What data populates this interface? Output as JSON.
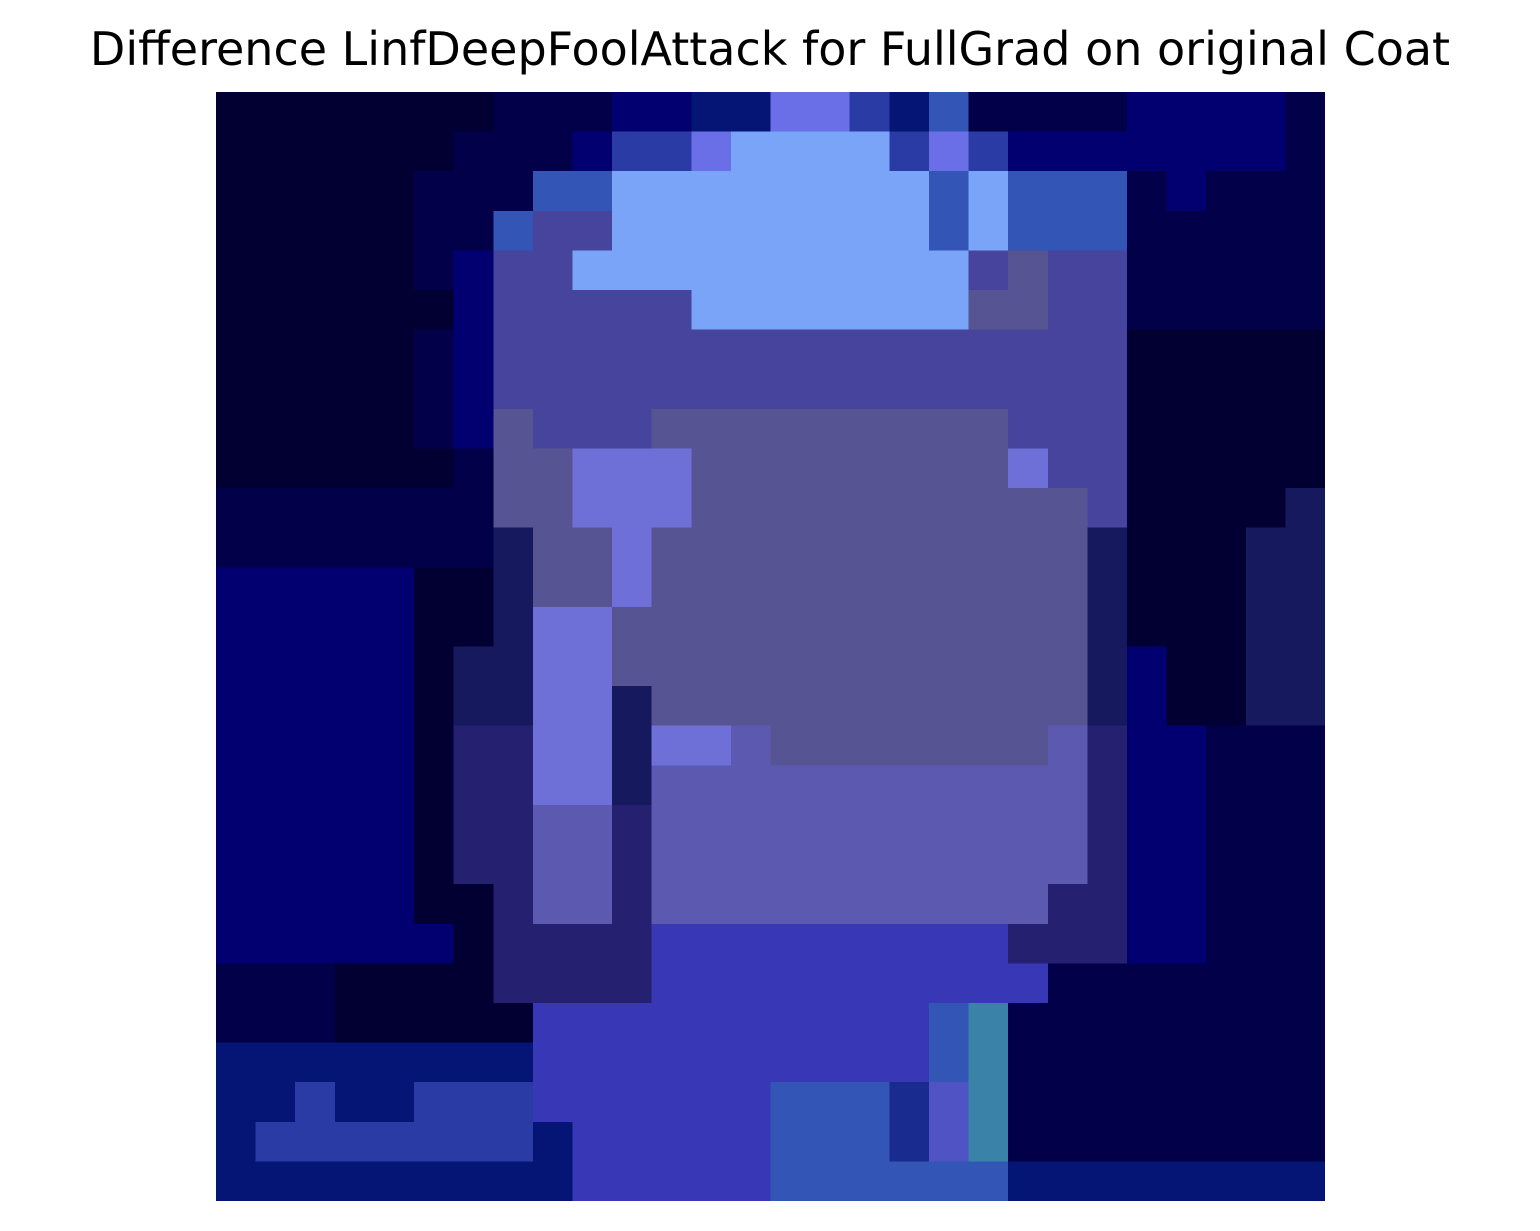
{
  "figure": {
    "title": "Difference LinfDeepFoolAttack for FullGrad on original Coat"
  },
  "chart_data": {
    "type": "heatmap",
    "title": "Difference LinfDeepFoolAttack for FullGrad on original Coat",
    "xlabel": "",
    "ylabel": "",
    "axes_visible": false,
    "grid": false,
    "legend": "none",
    "rows": 28,
    "cols": 28,
    "colormap": "rgb",
    "palette": [
      "#020033",
      "#020048",
      "#020071",
      "#041575",
      "#2a3ba5",
      "#6a6fe8",
      "#3355b5",
      "#7aa4f7",
      "#47449e",
      "#575493",
      "#6f6fd8",
      "#5c59b0",
      "#3837b5",
      "#4a4ad0",
      "#17195e",
      "#262070",
      "#4f53c3",
      "#3b82a8",
      "#5fd0e0",
      "#0b5d7f",
      "#00346f",
      "#1a2b8f",
      "#0a1f6a",
      "#9fa8ff",
      "#5aa8d8"
    ],
    "pixels": [
      "0000000111223355436111122221",
      "0000001112445777745422222221",
      "0000011166777777776766612111",
      "0000011688777777776766611111",
      "0000012887777777777898811111",
      "0000002888887777777998811111",
      "0000012888888888888888800000",
      "0000012888888888888888800000",
      "0000012988899999999988800000",
      "000000199aaa99999999a8800000",
      "111111199aaa999999999980000e",
      "1111111e99a99999999999e000ee",
      "2222200e99a99999999999e000ee",
      "2222200eaa999999999999e000ee",
      "222220eeaa999999999999e200ee",
      "222220eeaae99999999999e200ee",
      "222220ffaaeaab9999999bf22111",
      "222220ffaaebbbbbbbbbbbf22111",
      "222220ffbbfbbbbbbbbbbbf22111",
      "222220ffbbfbbbbbbbbbbbf22111",
      "2222200fbbfbbbbbbbbbbff22111",
      "2222220ffffcccccccccfff22111",
      "1110000ffffcccccccccc1111111",
      "11100000cccccccccc6h11111111",
      "33333333cccccccccc6h11111111",
      "33433444cccccc666lgh11111111",
      "344444443ccccc666lgh11111111",
      "333333333ccccc66666633333333"
    ]
  }
}
